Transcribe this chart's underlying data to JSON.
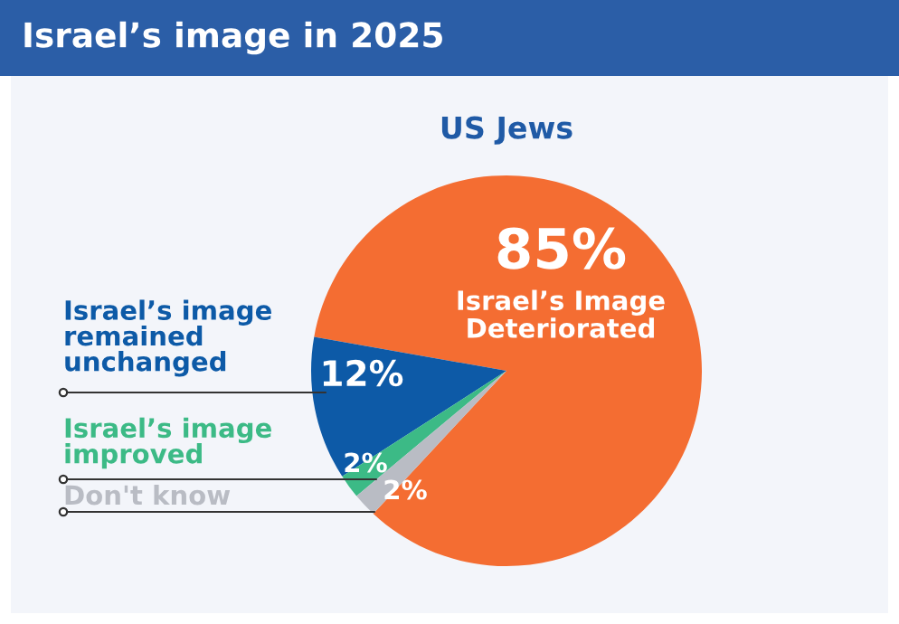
{
  "chart_data": {
    "type": "pie",
    "title": "Israel’s image in 2025",
    "subtitle": "US Jews",
    "categories": [
      "Israel’s Image\nDeteriorated",
      "Israel’s image\nremained\nunchanged",
      "Israel’s image\nimproved",
      "Don't know"
    ],
    "values": [
      85,
      12,
      2,
      2
    ],
    "value_labels": [
      "85%",
      "12%",
      "2%",
      "2%"
    ],
    "colors": [
      "#f46d32",
      "#0d5aa7",
      "#3cba86",
      "#b9bcc4"
    ]
  }
}
